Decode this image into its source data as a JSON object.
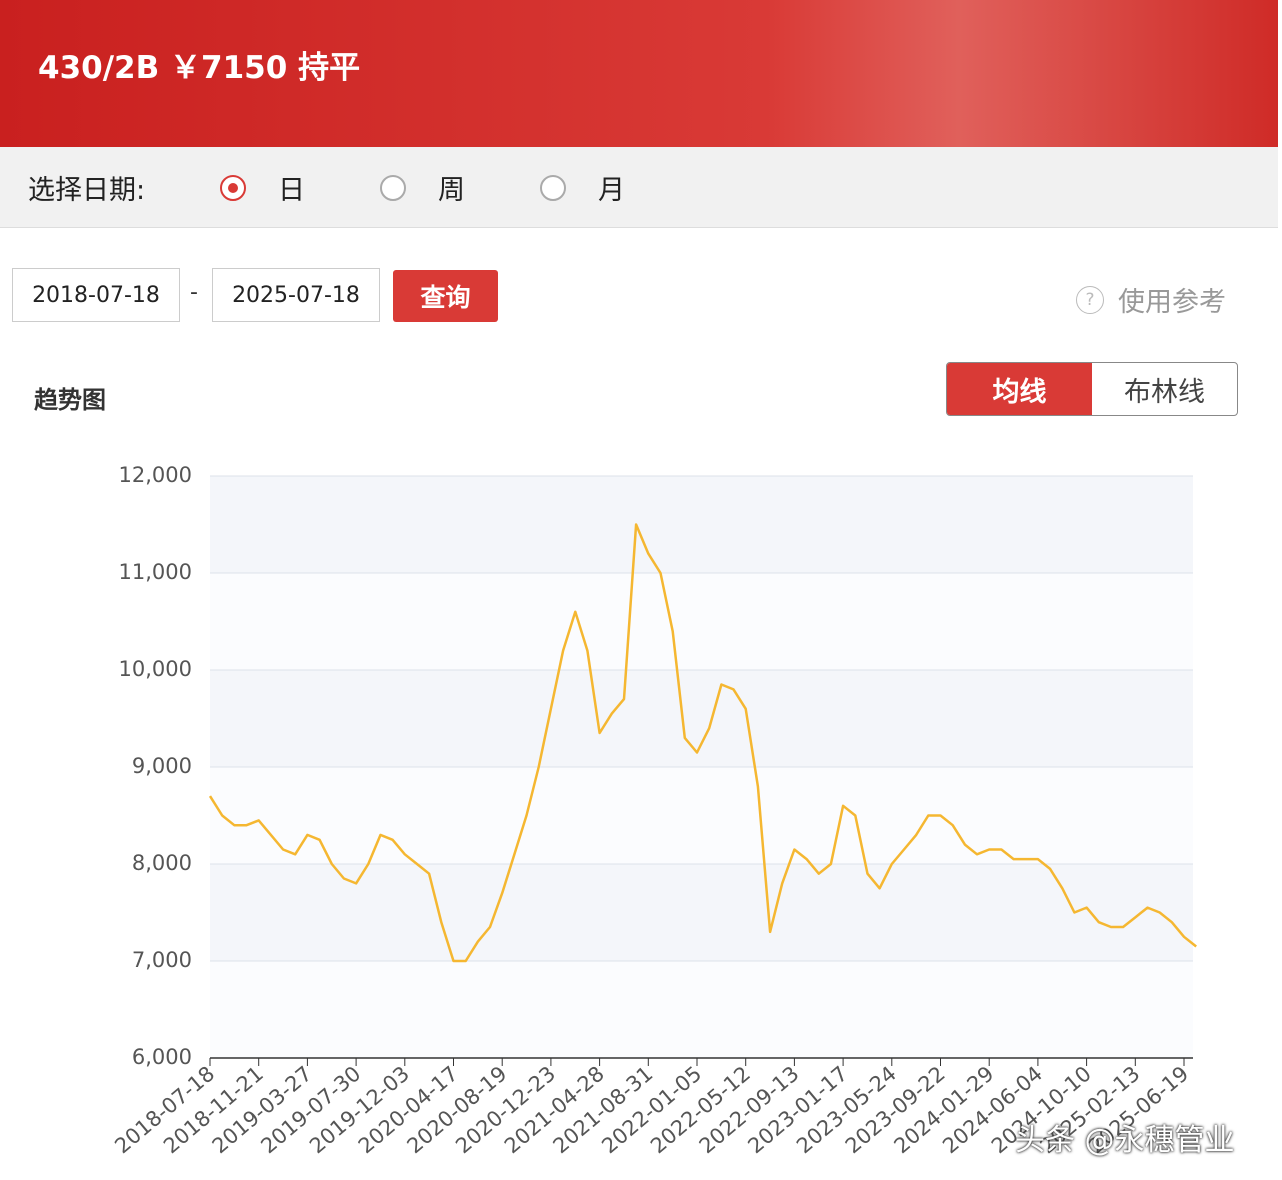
{
  "header": {
    "title": "430/2B ￥7150 持平"
  },
  "date_select": {
    "label": "选择日期:",
    "options": [
      "日",
      "周",
      "月"
    ],
    "selected": 0
  },
  "query": {
    "start": "2018-07-18",
    "separator": "-",
    "end": "2025-07-18",
    "button": "查询",
    "help": "使用参考"
  },
  "trend": {
    "title": "趋势图",
    "toggles": [
      "均线",
      "布林线"
    ],
    "active": 0
  },
  "watermark": "头条 @永穗管业",
  "chart_data": {
    "type": "line",
    "categories": [
      "2018-07-18",
      null,
      null,
      null,
      "2018-11-21",
      null,
      null,
      null,
      "2019-03-27",
      null,
      null,
      null,
      "2019-07-30",
      null,
      null,
      null,
      "2019-12-03",
      null,
      null,
      null,
      "2020-04-17",
      null,
      null,
      null,
      "2020-08-19",
      null,
      null,
      null,
      "2020-12-23",
      null,
      null,
      null,
      "2021-04-28",
      null,
      null,
      null,
      "2021-08-31",
      null,
      null,
      null,
      "2022-01-05",
      null,
      null,
      null,
      "2022-05-12",
      null,
      null,
      null,
      "2022-09-13",
      null,
      null,
      null,
      "2023-01-17",
      null,
      null,
      null,
      "2023-05-24",
      null,
      null,
      null,
      "2023-09-22",
      null,
      null,
      null,
      "2024-01-29",
      null,
      null,
      null,
      "2024-06-04",
      null,
      null,
      null,
      "2024-10-10",
      null,
      null,
      null,
      "2025-02-13",
      null,
      null,
      null,
      "2025-06-19",
      null
    ],
    "series": [
      {
        "color": "#f5b731",
        "values": [
          8700,
          8500,
          8400,
          8400,
          8450,
          8300,
          8150,
          8100,
          8300,
          8250,
          8000,
          7850,
          7800,
          8000,
          8300,
          8250,
          8100,
          8000,
          7900,
          7400,
          7000,
          7000,
          7200,
          7350,
          7700,
          8100,
          8500,
          9000,
          9600,
          10200,
          10600,
          10200,
          9350,
          9550,
          9700,
          11500,
          11200,
          11000,
          10400,
          9300,
          9150,
          9400,
          9850,
          9800,
          9600,
          8800,
          7300,
          7800,
          8150,
          8050,
          7900,
          8000,
          8600,
          8500,
          7900,
          7750,
          8000,
          8150,
          8300,
          8500,
          8500,
          8400,
          8200,
          8100,
          8150,
          8150,
          8050,
          8050,
          8050,
          7950,
          7750,
          7500,
          7550,
          7400,
          7350,
          7350,
          7450,
          7550,
          7500,
          7400,
          7250,
          7150
        ]
      }
    ],
    "ylim": [
      6000,
      12000
    ],
    "yticks": [
      {
        "value": 6000,
        "label": "6,000"
      },
      {
        "value": 7000,
        "label": "7,000"
      },
      {
        "value": 8000,
        "label": "8,000"
      },
      {
        "value": 9000,
        "label": "9,000"
      },
      {
        "value": 10000,
        "label": "10,000"
      },
      {
        "value": 11000,
        "label": "11,000"
      },
      {
        "value": 12000,
        "label": "12,000"
      }
    ],
    "grid": true
  }
}
